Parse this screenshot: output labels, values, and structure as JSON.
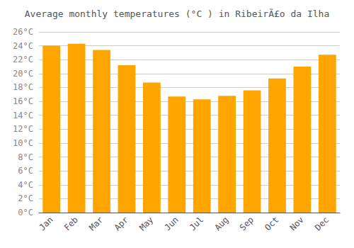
{
  "chart_data": {
    "type": "bar",
    "title": "Average monthly temperatures (°C ) in RibeirÃ£o da Ilha",
    "categories": [
      "Jan",
      "Feb",
      "Mar",
      "Apr",
      "May",
      "Jun",
      "Jul",
      "Aug",
      "Sep",
      "Oct",
      "Nov",
      "Dec"
    ],
    "values": [
      24.0,
      24.3,
      23.4,
      21.2,
      18.7,
      16.7,
      16.3,
      16.8,
      17.6,
      19.3,
      21.0,
      22.7
    ],
    "color": "#FFA500",
    "ylim": [
      0,
      26
    ],
    "yticks": [
      {
        "value": 0,
        "label": "0°C"
      },
      {
        "value": 2,
        "label": "2°C"
      },
      {
        "value": 4,
        "label": "4°C"
      },
      {
        "value": 6,
        "label": "6°C"
      },
      {
        "value": 8,
        "label": "8°C"
      },
      {
        "value": 10,
        "label": "10°C"
      },
      {
        "value": 12,
        "label": "12°C"
      },
      {
        "value": 14,
        "label": "14°C"
      },
      {
        "value": 16,
        "label": "16°C"
      },
      {
        "value": 18,
        "label": "18°C"
      },
      {
        "value": 20,
        "label": "20°C"
      },
      {
        "value": 22,
        "label": "22°C"
      },
      {
        "value": 24,
        "label": "24°C"
      },
      {
        "value": 26,
        "label": "26°C"
      }
    ],
    "grid": true
  }
}
